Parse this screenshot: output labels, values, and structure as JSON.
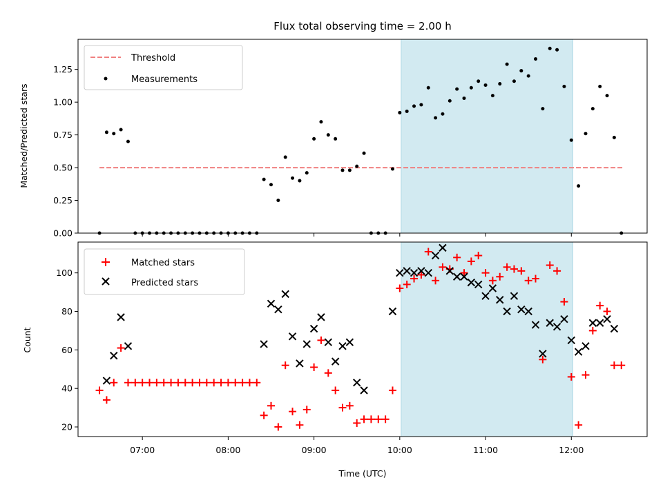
{
  "chart_data": [
    {
      "type": "scatter",
      "title": "Flux total observing time = 2.00 h",
      "xlabel": "",
      "ylabel": "Matched/Predicted stars",
      "ylim": [
        0,
        1.48
      ],
      "xlim": [
        "06:15",
        "12:53"
      ],
      "x_ticks": [
        "07:00",
        "08:00",
        "09:00",
        "10:00",
        "11:00",
        "12:00"
      ],
      "y_ticks": [
        "0.00",
        "0.25",
        "0.50",
        "0.75",
        "1.00",
        "1.25"
      ],
      "y_tick_values": [
        0,
        0.25,
        0.5,
        0.75,
        1.0,
        1.25
      ],
      "grid": false,
      "legend_position": "top-left",
      "highlight_span": {
        "start": "10:01",
        "end": "12:01",
        "color": "#add8e6"
      },
      "threshold": {
        "name": "Threshold",
        "value": 0.5,
        "start": "06:30",
        "end": "12:37",
        "color": "#f08080",
        "style": "dashed"
      },
      "series": [
        {
          "name": "Measurements",
          "color": "#000000",
          "marker": "dot",
          "points": [
            [
              "06:30",
              0.0
            ],
            [
              "06:35",
              0.77
            ],
            [
              "06:40",
              0.76
            ],
            [
              "06:45",
              0.79
            ],
            [
              "06:50",
              0.7
            ],
            [
              "06:55",
              0.0
            ],
            [
              "07:00",
              0.0
            ],
            [
              "07:05",
              0.0
            ],
            [
              "07:10",
              0.0
            ],
            [
              "07:15",
              0.0
            ],
            [
              "07:20",
              0.0
            ],
            [
              "07:25",
              0.0
            ],
            [
              "07:30",
              0.0
            ],
            [
              "07:35",
              0.0
            ],
            [
              "07:40",
              0.0
            ],
            [
              "07:45",
              0.0
            ],
            [
              "07:50",
              0.0
            ],
            [
              "07:55",
              0.0
            ],
            [
              "08:00",
              0.0
            ],
            [
              "08:05",
              0.0
            ],
            [
              "08:10",
              0.0
            ],
            [
              "08:15",
              0.0
            ],
            [
              "08:20",
              0.0
            ],
            [
              "08:25",
              0.41
            ],
            [
              "08:30",
              0.37
            ],
            [
              "08:35",
              0.25
            ],
            [
              "08:40",
              0.58
            ],
            [
              "08:45",
              0.42
            ],
            [
              "08:50",
              0.4
            ],
            [
              "08:55",
              0.46
            ],
            [
              "09:00",
              0.72
            ],
            [
              "09:05",
              0.85
            ],
            [
              "09:10",
              0.75
            ],
            [
              "09:15",
              0.72
            ],
            [
              "09:20",
              0.48
            ],
            [
              "09:25",
              0.48
            ],
            [
              "09:30",
              0.51
            ],
            [
              "09:35",
              0.61
            ],
            [
              "09:40",
              0.0
            ],
            [
              "09:45",
              0.0
            ],
            [
              "09:50",
              0.0
            ],
            [
              "09:55",
              0.49
            ],
            [
              "10:00",
              0.92
            ],
            [
              "10:05",
              0.93
            ],
            [
              "10:10",
              0.97
            ],
            [
              "10:15",
              0.98
            ],
            [
              "10:20",
              1.11
            ],
            [
              "10:25",
              0.88
            ],
            [
              "10:30",
              0.91
            ],
            [
              "10:35",
              1.01
            ],
            [
              "10:40",
              1.1
            ],
            [
              "10:45",
              1.03
            ],
            [
              "10:50",
              1.11
            ],
            [
              "10:55",
              1.16
            ],
            [
              "11:00",
              1.13
            ],
            [
              "11:05",
              1.05
            ],
            [
              "11:10",
              1.14
            ],
            [
              "11:15",
              1.29
            ],
            [
              "11:20",
              1.16
            ],
            [
              "11:25",
              1.24
            ],
            [
              "11:30",
              1.2
            ],
            [
              "11:35",
              1.33
            ],
            [
              "11:40",
              0.95
            ],
            [
              "11:45",
              1.41
            ],
            [
              "11:50",
              1.4
            ],
            [
              "11:55",
              1.12
            ],
            [
              "12:00",
              0.71
            ],
            [
              "12:05",
              0.36
            ],
            [
              "12:10",
              0.76
            ],
            [
              "12:15",
              0.95
            ],
            [
              "12:20",
              1.12
            ],
            [
              "12:25",
              1.05
            ],
            [
              "12:30",
              0.73
            ],
            [
              "12:35",
              0.0
            ]
          ]
        }
      ]
    },
    {
      "type": "scatter",
      "title": "",
      "xlabel": "Time (UTC)",
      "ylabel": "Count",
      "ylim": [
        15,
        116
      ],
      "xlim": [
        "06:15",
        "12:53"
      ],
      "x_ticks": [
        "07:00",
        "08:00",
        "09:00",
        "10:00",
        "11:00",
        "12:00"
      ],
      "y_ticks": [
        "20",
        "40",
        "60",
        "80",
        "100"
      ],
      "y_tick_values": [
        20,
        40,
        60,
        80,
        100
      ],
      "grid": false,
      "legend_position": "top-left",
      "highlight_span": {
        "start": "10:01",
        "end": "12:01",
        "color": "#add8e6"
      },
      "series": [
        {
          "name": "Matched stars",
          "color": "#ff0000",
          "marker": "plus",
          "points": [
            [
              "06:30",
              39
            ],
            [
              "06:35",
              34
            ],
            [
              "06:40",
              43
            ],
            [
              "06:45",
              61
            ],
            [
              "06:50",
              43
            ],
            [
              "06:55",
              43
            ],
            [
              "07:00",
              43
            ],
            [
              "07:05",
              43
            ],
            [
              "07:10",
              43
            ],
            [
              "07:15",
              43
            ],
            [
              "07:20",
              43
            ],
            [
              "07:25",
              43
            ],
            [
              "07:30",
              43
            ],
            [
              "07:35",
              43
            ],
            [
              "07:40",
              43
            ],
            [
              "07:45",
              43
            ],
            [
              "07:50",
              43
            ],
            [
              "07:55",
              43
            ],
            [
              "08:00",
              43
            ],
            [
              "08:05",
              43
            ],
            [
              "08:10",
              43
            ],
            [
              "08:15",
              43
            ],
            [
              "08:20",
              43
            ],
            [
              "08:25",
              26
            ],
            [
              "08:30",
              31
            ],
            [
              "08:35",
              20
            ],
            [
              "08:40",
              52
            ],
            [
              "08:45",
              28
            ],
            [
              "08:50",
              21
            ],
            [
              "08:55",
              29
            ],
            [
              "09:00",
              51
            ],
            [
              "09:05",
              65
            ],
            [
              "09:10",
              48
            ],
            [
              "09:15",
              39
            ],
            [
              "09:20",
              30
            ],
            [
              "09:25",
              31
            ],
            [
              "09:30",
              22
            ],
            [
              "09:35",
              24
            ],
            [
              "09:40",
              24
            ],
            [
              "09:45",
              24
            ],
            [
              "09:50",
              24
            ],
            [
              "09:55",
              39
            ],
            [
              "10:00",
              92
            ],
            [
              "10:05",
              94
            ],
            [
              "10:10",
              97
            ],
            [
              "10:15",
              99
            ],
            [
              "10:20",
              111
            ],
            [
              "10:25",
              96
            ],
            [
              "10:30",
              103
            ],
            [
              "10:35",
              102
            ],
            [
              "10:40",
              108
            ],
            [
              "10:45",
              100
            ],
            [
              "10:50",
              106
            ],
            [
              "10:55",
              109
            ],
            [
              "11:00",
              100
            ],
            [
              "11:05",
              96
            ],
            [
              "11:10",
              98
            ],
            [
              "11:15",
              103
            ],
            [
              "11:20",
              102
            ],
            [
              "11:25",
              101
            ],
            [
              "11:30",
              96
            ],
            [
              "11:35",
              97
            ],
            [
              "11:40",
              55
            ],
            [
              "11:45",
              104
            ],
            [
              "11:50",
              101
            ],
            [
              "11:55",
              85
            ],
            [
              "12:00",
              46
            ],
            [
              "12:05",
              21
            ],
            [
              "12:10",
              47
            ],
            [
              "12:15",
              70
            ],
            [
              "12:20",
              83
            ],
            [
              "12:25",
              80
            ],
            [
              "12:30",
              52
            ],
            [
              "12:35",
              52
            ]
          ]
        },
        {
          "name": "Predicted stars",
          "color": "#000000",
          "marker": "cross",
          "points": [
            [
              "06:35",
              44
            ],
            [
              "06:40",
              57
            ],
            [
              "06:45",
              77
            ],
            [
              "06:50",
              62
            ],
            [
              "08:25",
              63
            ],
            [
              "08:30",
              84
            ],
            [
              "08:35",
              81
            ],
            [
              "08:40",
              89
            ],
            [
              "08:45",
              67
            ],
            [
              "08:50",
              53
            ],
            [
              "08:55",
              63
            ],
            [
              "09:00",
              71
            ],
            [
              "09:05",
              77
            ],
            [
              "09:10",
              64
            ],
            [
              "09:15",
              54
            ],
            [
              "09:20",
              62
            ],
            [
              "09:25",
              64
            ],
            [
              "09:30",
              43
            ],
            [
              "09:35",
              39
            ],
            [
              "09:55",
              80
            ],
            [
              "10:00",
              100
            ],
            [
              "10:05",
              101
            ],
            [
              "10:10",
              100
            ],
            [
              "10:15",
              101
            ],
            [
              "10:20",
              100
            ],
            [
              "10:25",
              109
            ],
            [
              "10:30",
              113
            ],
            [
              "10:35",
              101
            ],
            [
              "10:40",
              98
            ],
            [
              "10:45",
              98
            ],
            [
              "10:50",
              95
            ],
            [
              "10:55",
              94
            ],
            [
              "11:00",
              88
            ],
            [
              "11:05",
              92
            ],
            [
              "11:10",
              86
            ],
            [
              "11:15",
              80
            ],
            [
              "11:20",
              88
            ],
            [
              "11:25",
              81
            ],
            [
              "11:30",
              80
            ],
            [
              "11:35",
              73
            ],
            [
              "11:40",
              58
            ],
            [
              "11:45",
              74
            ],
            [
              "11:50",
              72
            ],
            [
              "11:55",
              76
            ],
            [
              "12:00",
              65
            ],
            [
              "12:05",
              59
            ],
            [
              "12:10",
              62
            ],
            [
              "12:15",
              74
            ],
            [
              "12:20",
              74
            ],
            [
              "12:25",
              76
            ],
            [
              "12:30",
              71
            ]
          ]
        }
      ]
    }
  ]
}
